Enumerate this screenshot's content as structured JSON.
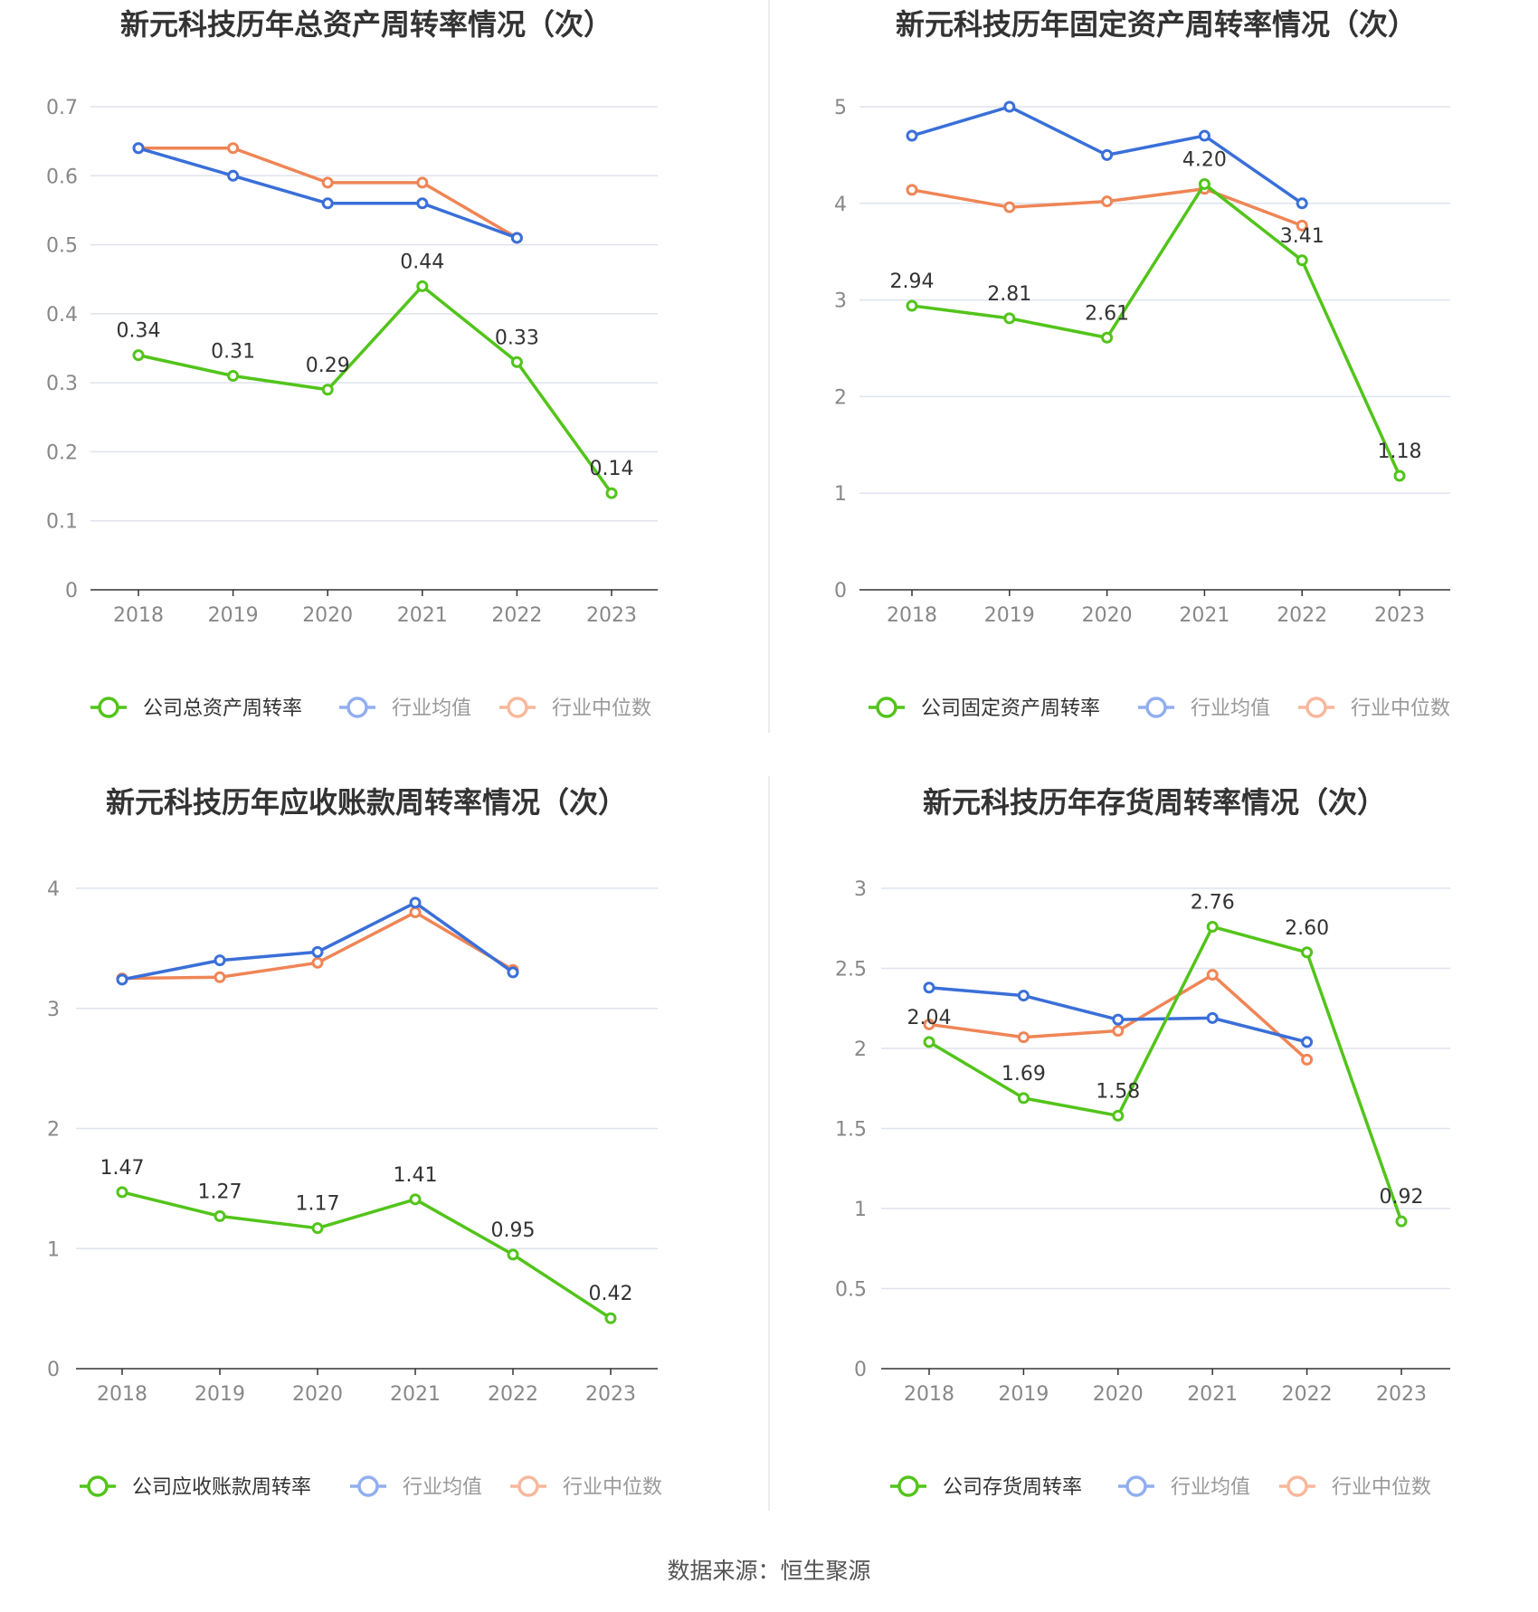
{
  "source_label": "数据来源：恒生聚源",
  "colors": {
    "company": "#52c41a",
    "mean": "#3a6fd8",
    "median": "#ef8556",
    "legend_mean": "#91aef0",
    "legend_median": "#f7b89c"
  },
  "chart_data": [
    {
      "type": "line",
      "title": "新元科技历年总资产周转率情况（次）",
      "x": [
        "2018",
        "2019",
        "2020",
        "2021",
        "2022",
        "2023"
      ],
      "ylim": [
        0,
        0.7
      ],
      "yticks": [
        "0",
        "0.1",
        "0.2",
        "0.3",
        "0.4",
        "0.5",
        "0.6",
        "0.7"
      ],
      "grid": true,
      "legend": "bottom",
      "series": [
        {
          "name": "公司总资产周转率",
          "role": "company",
          "values": [
            0.34,
            0.31,
            0.29,
            0.44,
            0.33,
            0.14
          ],
          "labels": [
            "0.34",
            "0.31",
            "0.29",
            "0.44",
            "0.33",
            "0.14"
          ]
        },
        {
          "name": "行业均值",
          "role": "mean",
          "values": [
            0.64,
            0.6,
            0.56,
            0.56,
            0.51,
            null
          ]
        },
        {
          "name": "行业中位数",
          "role": "median",
          "values": [
            0.64,
            0.64,
            0.59,
            0.59,
            0.51,
            null
          ]
        }
      ]
    },
    {
      "type": "line",
      "title": "新元科技历年固定资产周转率情况（次）",
      "x": [
        "2018",
        "2019",
        "2020",
        "2021",
        "2022",
        "2023"
      ],
      "ylim": [
        0,
        5
      ],
      "yticks": [
        "0",
        "1",
        "2",
        "3",
        "4",
        "5"
      ],
      "grid": true,
      "legend": "bottom",
      "series": [
        {
          "name": "公司固定资产周转率",
          "role": "company",
          "values": [
            2.94,
            2.81,
            2.61,
            4.2,
            3.41,
            1.18
          ],
          "labels": [
            "2.94",
            "2.81",
            "2.61",
            "4.20",
            "3.41",
            "1.18"
          ]
        },
        {
          "name": "行业均值",
          "role": "mean",
          "values": [
            4.7,
            5.0,
            4.5,
            4.7,
            4.0,
            null
          ]
        },
        {
          "name": "行业中位数",
          "role": "median",
          "values": [
            4.14,
            3.96,
            4.02,
            4.15,
            3.77,
            null
          ]
        }
      ]
    },
    {
      "type": "line",
      "title": "新元科技历年应收账款周转率情况（次）",
      "x": [
        "2018",
        "2019",
        "2020",
        "2021",
        "2022",
        "2023"
      ],
      "ylim": [
        0,
        4
      ],
      "yticks": [
        "0",
        "1",
        "2",
        "3",
        "4"
      ],
      "grid": true,
      "legend": "bottom",
      "series": [
        {
          "name": "公司应收账款周转率",
          "role": "company",
          "values": [
            1.47,
            1.27,
            1.17,
            1.41,
            0.95,
            0.42
          ],
          "labels": [
            "1.47",
            "1.27",
            "1.17",
            "1.41",
            "0.95",
            "0.42"
          ]
        },
        {
          "name": "行业均值",
          "role": "mean",
          "values": [
            3.24,
            3.4,
            3.47,
            3.88,
            3.3,
            null
          ]
        },
        {
          "name": "行业中位数",
          "role": "median",
          "values": [
            3.25,
            3.26,
            3.38,
            3.8,
            3.32,
            null
          ]
        }
      ]
    },
    {
      "type": "line",
      "title": "新元科技历年存货周转率情况（次）",
      "x": [
        "2018",
        "2019",
        "2020",
        "2021",
        "2022",
        "2023"
      ],
      "ylim": [
        0,
        3
      ],
      "yticks": [
        "0",
        "0.5",
        "1",
        "1.5",
        "2",
        "2.5",
        "3"
      ],
      "grid": true,
      "legend": "bottom",
      "series": [
        {
          "name": "公司存货周转率",
          "role": "company",
          "values": [
            2.04,
            1.69,
            1.58,
            2.76,
            2.6,
            0.92
          ],
          "labels": [
            "2.04",
            "1.69",
            "1.58",
            "2.76",
            "2.60",
            "0.92"
          ]
        },
        {
          "name": "行业均值",
          "role": "mean",
          "values": [
            2.38,
            2.33,
            2.18,
            2.19,
            2.04,
            null
          ]
        },
        {
          "name": "行业中位数",
          "role": "median",
          "values": [
            2.15,
            2.07,
            2.11,
            2.46,
            1.93,
            null
          ]
        }
      ]
    }
  ]
}
